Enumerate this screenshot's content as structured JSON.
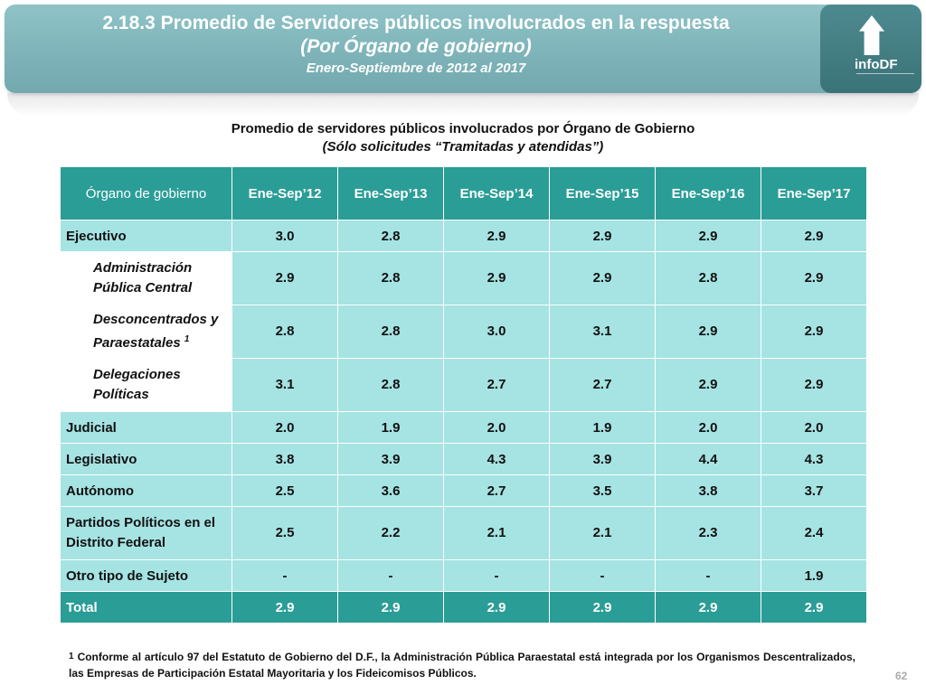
{
  "header": {
    "title": "2.18.3 Promedio de Servidores públicos involucrados en la respuesta",
    "subtitle": "(Por Órgano de gobierno)",
    "period": "Enero-Septiembre de 2012 al 2017",
    "logo_text": "infoDF"
  },
  "table_title": {
    "line1": "Promedio de servidores públicos involucrados por Órgano de Gobierno",
    "line2": "(Sólo solicitudes “Tramitadas y atendidas”)"
  },
  "table": {
    "columns": [
      "Órgano de gobierno",
      "Ene-Sep’12",
      "Ene-Sep’13",
      "Ene-Sep’14",
      "Ene-Sep’15",
      "Ene-Sep’16",
      "Ene-Sep’17"
    ],
    "rows": [
      {
        "label": "Ejecutivo",
        "values": [
          "3.0",
          "2.8",
          "2.9",
          "2.9",
          "2.9",
          "2.9"
        ]
      },
      {
        "label": "Administración Pública Central",
        "values": [
          "2.9",
          "2.8",
          "2.9",
          "2.9",
          "2.8",
          "2.9"
        ]
      },
      {
        "label": "Desconcentrados y Paraestatales",
        "mark": "1",
        "values": [
          "2.8",
          "2.8",
          "3.0",
          "3.1",
          "2.9",
          "2.9"
        ]
      },
      {
        "label": "Delegaciones Políticas",
        "values": [
          "3.1",
          "2.8",
          "2.7",
          "2.7",
          "2.9",
          "2.9"
        ]
      },
      {
        "label": "Judicial",
        "values": [
          "2.0",
          "1.9",
          "2.0",
          "1.9",
          "2.0",
          "2.0"
        ]
      },
      {
        "label": "Legislativo",
        "values": [
          "3.8",
          "3.9",
          "4.3",
          "3.9",
          "4.4",
          "4.3"
        ]
      },
      {
        "label": "Autónomo",
        "values": [
          "2.5",
          "3.6",
          "2.7",
          "3.5",
          "3.8",
          "3.7"
        ]
      },
      {
        "label": "Partidos Políticos en el Distrito Federal",
        "values": [
          "2.5",
          "2.2",
          "2.1",
          "2.1",
          "2.3",
          "2.4"
        ]
      },
      {
        "label": "Otro tipo de Sujeto",
        "values": [
          "-",
          "-",
          "-",
          "-",
          "-",
          "1.9"
        ]
      },
      {
        "label": "Total",
        "values": [
          "2.9",
          "2.9",
          "2.9",
          "2.9",
          "2.9",
          "2.9"
        ]
      }
    ]
  },
  "footnote": {
    "mark": "1",
    "text": "Conforme al artículo 97 del Estatuto de Gobierno del D.F., la Administración Pública Paraestatal está integrada por los Organismos Descentralizados, las Empresas de Participación Estatal Mayoritaria y los Fideicomisos Públicos."
  },
  "page_number": "62",
  "colors": {
    "header_bg": "#2a9d96",
    "cell_bg": "#a6e3e3",
    "banner": "#7eb4b9"
  }
}
